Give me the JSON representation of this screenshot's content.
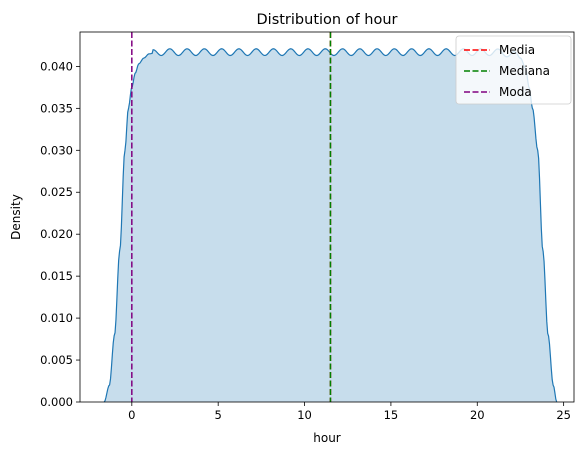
{
  "chart_data": {
    "type": "area",
    "title": "Distribution of hour",
    "xlabel": "hour",
    "ylabel": "Density",
    "xlim": [
      -3.0,
      25.6
    ],
    "ylim": [
      0.0,
      0.0441
    ],
    "xticks": [
      0,
      5,
      10,
      15,
      20,
      25
    ],
    "xtick_labels": [
      "0",
      "5",
      "10",
      "15",
      "20",
      "25"
    ],
    "yticks": [
      0.0,
      0.005,
      0.01,
      0.015,
      0.02,
      0.025,
      0.03,
      0.035,
      0.04
    ],
    "ytick_labels": [
      "0.000",
      "0.005",
      "0.010",
      "0.015",
      "0.020",
      "0.025",
      "0.030",
      "0.035",
      "0.040"
    ],
    "grid": false,
    "legend_position": "top-right",
    "density_curve": {
      "color": "#1f77b4",
      "fill_color": "#1f77b4",
      "fill_opacity": 0.25,
      "x": [
        -1.6,
        -1.3,
        -1.0,
        -0.7,
        -0.4,
        -0.2,
        0.0,
        0.2,
        0.4,
        0.7,
        1.0,
        1.5,
        2.0,
        3.0,
        5.0,
        8.0,
        11.5,
        15.0,
        18.0,
        20.0,
        21.0,
        22.0,
        22.5,
        22.8,
        23.0,
        23.2,
        23.5,
        23.8,
        24.1,
        24.4,
        24.6
      ],
      "y": [
        0.0,
        0.002,
        0.008,
        0.018,
        0.03,
        0.035,
        0.0375,
        0.0392,
        0.0403,
        0.041,
        0.0415,
        0.0417,
        0.0417,
        0.0417,
        0.0417,
        0.0417,
        0.0417,
        0.0417,
        0.0417,
        0.0417,
        0.0417,
        0.0415,
        0.041,
        0.0398,
        0.0375,
        0.035,
        0.03,
        0.018,
        0.008,
        0.002,
        0.0
      ],
      "ripple_amplitude": 0.0004,
      "ripple_period": 1.0,
      "ripple_range": [
        1.2,
        22.5
      ]
    },
    "series": [
      {
        "name": "Media",
        "value": 11.5,
        "color": "#ff0000",
        "style": "dashed"
      },
      {
        "name": "Mediana",
        "value": 11.5,
        "color": "#008000",
        "style": "dashed"
      },
      {
        "name": "Moda",
        "value": 0,
        "color": "#800080",
        "style": "dashed"
      }
    ]
  }
}
